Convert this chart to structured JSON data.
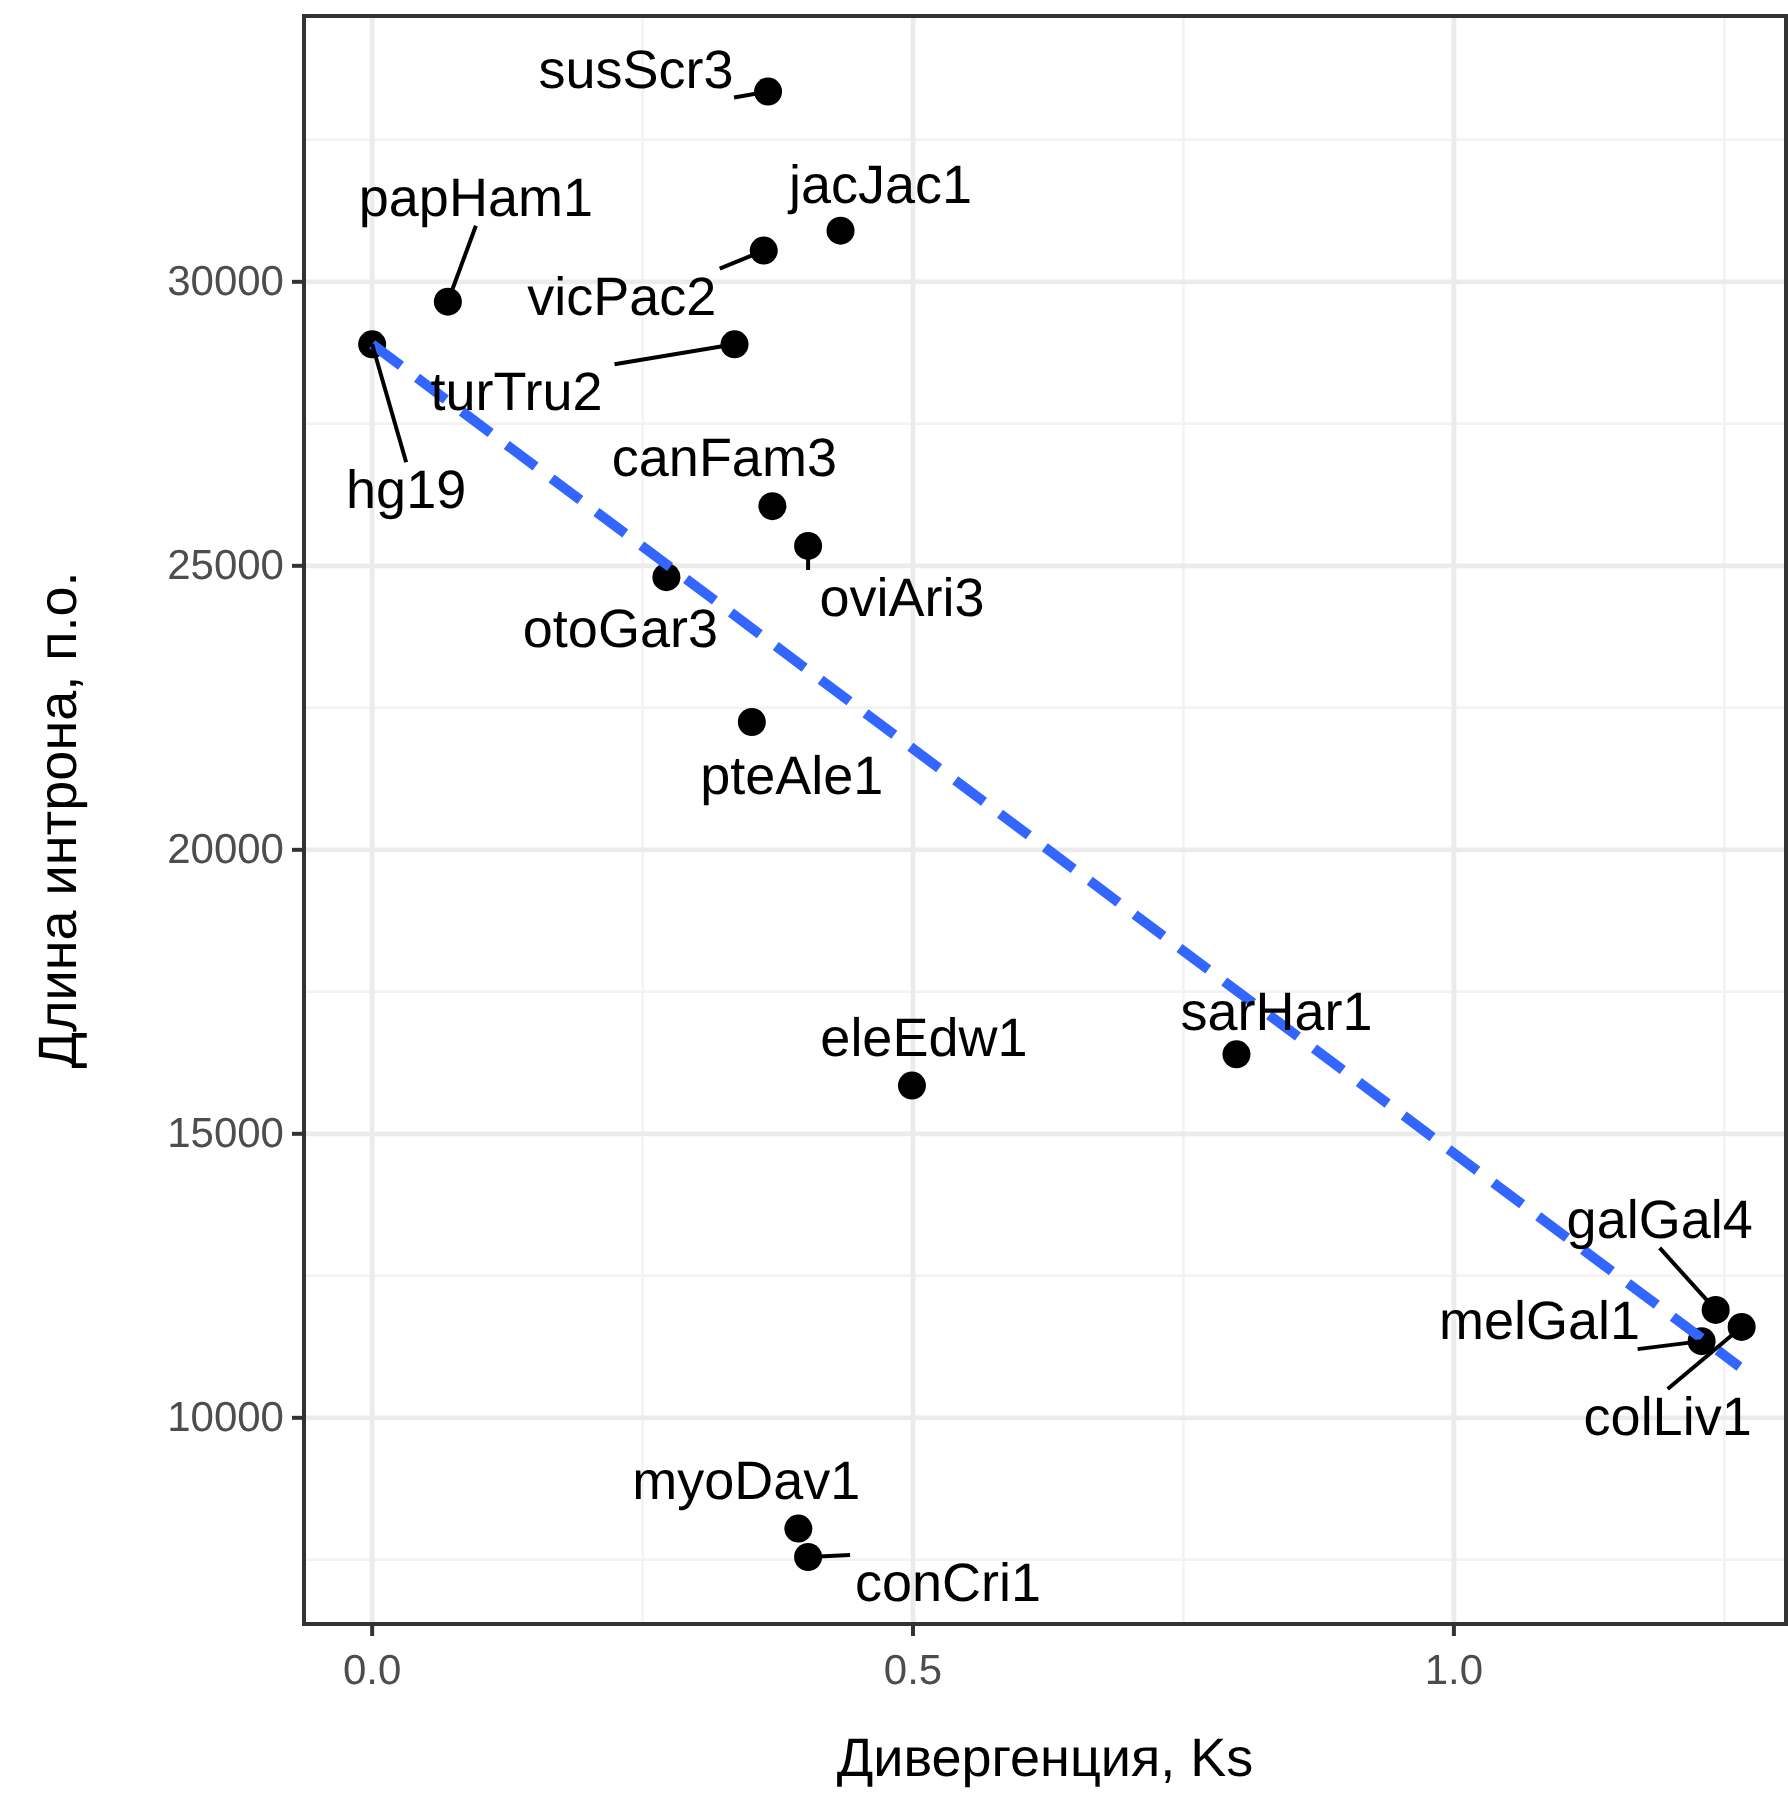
{
  "chart_data": {
    "type": "scatter",
    "xlabel": "Дивергенция, Ks",
    "ylabel": "Длина интрона, п.о.",
    "xlim": [
      -0.063,
      1.307
    ],
    "ylim": [
      6370,
      34680
    ],
    "xticks": [
      {
        "value": 0,
        "label": "0.0"
      },
      {
        "value": 0.5,
        "label": "0.5"
      },
      {
        "value": 1,
        "label": "1.0"
      }
    ],
    "yticks": [
      10000,
      15000,
      20000,
      25000,
      30000
    ],
    "grid": true,
    "marker": "circle",
    "series": [
      {
        "color": "#000000",
        "x": [
          0.366,
          0.433,
          0.07,
          0.362,
          0.335,
          0,
          0.37,
          0.403,
          0.272,
          0.351,
          0.499,
          0.799,
          1.242,
          1.229,
          1.266,
          0.394,
          0.403
        ],
        "values": [
          33350,
          30900,
          29650,
          30550,
          28900,
          28900,
          26050,
          25350,
          24800,
          22250,
          15850,
          16400,
          11900,
          11350,
          11600,
          8050,
          7550
        ]
      },
      {
        "type": "line",
        "color": "#3366ff",
        "line_style": "dashed",
        "marker": "none",
        "x": [
          0,
          1.264
        ],
        "values": [
          28900,
          10900
        ]
      }
    ],
    "annotations": [
      {
        "text": "susScr3",
        "x": 0.366,
        "y": 33350
      },
      {
        "text": "jacJac1",
        "x": 0.433,
        "y": 30900
      },
      {
        "text": "papHam1",
        "x": 0.07,
        "y": 29650
      },
      {
        "text": "vicPac2",
        "x": 0.362,
        "y": 30550
      },
      {
        "text": "turTru2",
        "x": 0.335,
        "y": 28900
      },
      {
        "text": "hg19",
        "x": 0,
        "y": 28900
      },
      {
        "text": "canFam3",
        "x": 0.37,
        "y": 26050
      },
      {
        "text": "oviAri3",
        "x": 0.403,
        "y": 25350
      },
      {
        "text": "otoGar3",
        "x": 0.272,
        "y": 24800
      },
      {
        "text": "pteAle1",
        "x": 0.351,
        "y": 22250
      },
      {
        "text": "eleEdw1",
        "x": 0.499,
        "y": 15850
      },
      {
        "text": "sarHar1",
        "x": 0.799,
        "y": 16400
      },
      {
        "text": "galGal4",
        "x": 1.242,
        "y": 11900
      },
      {
        "text": "melGal1",
        "x": 1.229,
        "y": 11350
      },
      {
        "text": "colLiv1",
        "x": 1.266,
        "y": 11600
      },
      {
        "text": "myoDav1",
        "x": 0.394,
        "y": 8050
      },
      {
        "text": "conCri1",
        "x": 0.403,
        "y": 7550
      }
    ]
  }
}
